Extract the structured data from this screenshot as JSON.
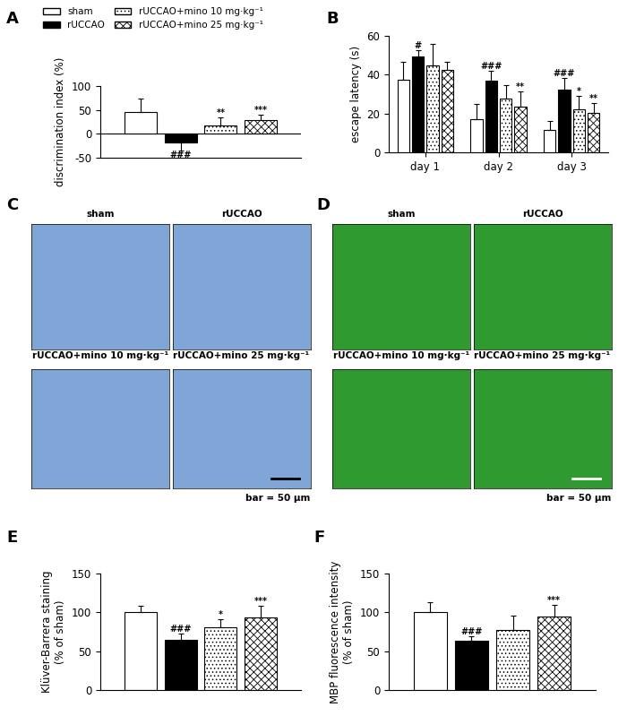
{
  "chart_data": [
    {
      "type": "bar",
      "label": "A",
      "ylabel": "discrimination index (%)",
      "categories": [
        null
      ],
      "ylim": [
        -50,
        100
      ],
      "yticks": [
        -50,
        0,
        50,
        100
      ],
      "tick_labels": "y",
      "legend": "upper left",
      "series": [
        {
          "name": "sham",
          "color": "#ffffff",
          "values": [
            46
          ],
          "errors": [
            27
          ],
          "significance": [
            null
          ]
        },
        {
          "name": "rUCCAO",
          "color": "#000000",
          "values": [
            -18
          ],
          "errors": [
            17
          ],
          "significance": [
            "###"
          ]
        },
        {
          "name": "rUCCAO+mino 10 mg·kg⁻¹",
          "color": "#ffffff",
          "values": [
            18
          ],
          "errors": [
            16
          ],
          "significance": [
            "**"
          ]
        },
        {
          "name": "rUCCAO+mino 25 mg·kg⁻¹",
          "color": "#ffffff",
          "values": [
            29
          ],
          "errors": [
            11
          ],
          "significance": [
            "***"
          ]
        }
      ]
    },
    {
      "type": "bar",
      "label": "B",
      "ylabel": "escape latency (s)",
      "categories": [
        "day 1",
        "day 2",
        "day 3"
      ],
      "ylim": [
        0,
        60
      ],
      "yticks": [
        0,
        20,
        40,
        60
      ],
      "series": [
        {
          "color": "#ffffff",
          "values": [
            37.5,
            17,
            11.5
          ],
          "errors": [
            9,
            8,
            4.5
          ],
          "significance": [
            null,
            null,
            null
          ]
        },
        {
          "color": "#000000",
          "values": [
            49.5,
            37,
            32.5
          ],
          "errors": [
            3,
            5,
            6
          ],
          "significance": [
            "#",
            "###",
            "###"
          ]
        },
        {
          "color": "#ffffff",
          "values": [
            45,
            27.5,
            22
          ],
          "errors": [
            11,
            7,
            7
          ],
          "significance": [
            null,
            null,
            "*"
          ]
        },
        {
          "color": "#ffffff",
          "values": [
            42.5,
            23.5,
            20.5
          ],
          "errors": [
            4,
            8,
            5
          ],
          "significance": [
            null,
            "**",
            "**"
          ]
        }
      ]
    },
    {
      "type": "bar",
      "label": "E",
      "ylabel": "Klüver-Barrera staining\n(% of sham)",
      "categories": [
        null
      ],
      "ylim": [
        0,
        150
      ],
      "yticks": [
        0,
        50,
        100,
        150
      ],
      "tick_labels": "y",
      "series": [
        {
          "color": "#ffffff",
          "values": [
            100
          ],
          "errors": [
            8
          ],
          "significance": [
            null
          ]
        },
        {
          "color": "#000000",
          "values": [
            65
          ],
          "errors": [
            8
          ],
          "significance": [
            "###"
          ]
        },
        {
          "color": "#ffffff",
          "values": [
            81
          ],
          "errors": [
            10
          ],
          "significance": [
            "*"
          ]
        },
        {
          "color": "#ffffff",
          "values": [
            93
          ],
          "errors": [
            15
          ],
          "significance": [
            "***"
          ]
        }
      ]
    },
    {
      "type": "bar",
      "label": "F",
      "ylabel": "MBP fluorescence intensity\n(% of sham)",
      "categories": [
        null
      ],
      "ylim": [
        0,
        150
      ],
      "yticks": [
        0,
        50,
        100,
        150
      ],
      "tick_labels": "y",
      "series": [
        {
          "color": "#ffffff",
          "values": [
            100
          ],
          "errors": [
            13
          ],
          "significance": [
            null
          ]
        },
        {
          "color": "#000000",
          "values": [
            64
          ],
          "errors": [
            5
          ],
          "significance": [
            "###"
          ]
        },
        {
          "color": "#ffffff",
          "values": [
            78
          ],
          "errors": [
            18
          ],
          "significance": [
            null
          ]
        },
        {
          "color": "#ffffff",
          "values": [
            95
          ],
          "errors": [
            15
          ],
          "significance": [
            "***"
          ]
        }
      ]
    }
  ],
  "images": [
    {
      "label": "C",
      "color": "#7fa6d6",
      "scale_bar": "bar = 50 μm",
      "panels": [
        "sham",
        "rUCCAO",
        "rUCCAO+mino 10 mg·kg⁻¹",
        "rUCCAO+mino 25 mg·kg⁻¹"
      ]
    },
    {
      "label": "D",
      "color": "#2f9a2f",
      "scale_bar": "bar = 50 μm",
      "panels": [
        "sham",
        "rUCCAO",
        "rUCCAO+mino 10 mg·kg⁻¹",
        "rUCCAO+mino 25 mg·kg⁻¹"
      ]
    }
  ]
}
